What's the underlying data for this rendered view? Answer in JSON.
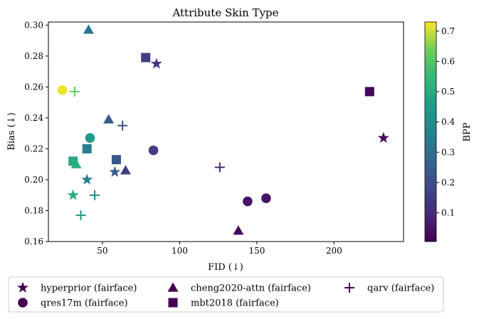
{
  "chart_data": {
    "type": "scatter",
    "title": "Attribute Skin Type",
    "xlabel": "FID (↓)",
    "ylabel": "Bias (↓)",
    "xlim": [
      15,
      245
    ],
    "ylim": [
      0.16,
      0.302
    ],
    "xticks": [
      50,
      100,
      150,
      200
    ],
    "yticks": [
      0.16,
      0.18,
      0.2,
      0.22,
      0.24,
      0.26,
      0.28,
      0.3
    ],
    "xtick_labels": [
      "50",
      "100",
      "150",
      "200"
    ],
    "ytick_labels": [
      "0.16",
      "0.18",
      "0.20",
      "0.22",
      "0.24",
      "0.26",
      "0.28",
      "0.30"
    ],
    "grid": false,
    "colorbar": {
      "label": "BPP",
      "colormap": "viridis",
      "range": [
        0.005,
        0.73
      ],
      "ticks": [
        0.1,
        0.2,
        0.3,
        0.4,
        0.5,
        0.6,
        0.7
      ],
      "tick_labels": [
        "0.1",
        "0.2",
        "0.3",
        "0.4",
        "0.5",
        "0.6",
        "0.7"
      ]
    },
    "legend": {
      "placement": "bottom",
      "columns": 3
    },
    "series": [
      {
        "name": "hyperprior (fairface)",
        "marker": "star",
        "points": [
          {
            "x": 85,
            "y": 0.275,
            "bpp": 0.13
          },
          {
            "x": 232,
            "y": 0.227,
            "bpp": 0.03
          },
          {
            "x": 58,
            "y": 0.205,
            "bpp": 0.24
          },
          {
            "x": 40,
            "y": 0.2,
            "bpp": 0.36
          },
          {
            "x": 31,
            "y": 0.19,
            "bpp": 0.51
          }
        ]
      },
      {
        "name": "qres17m (fairface)",
        "marker": "circle",
        "points": [
          {
            "x": 24,
            "y": 0.258,
            "bpp": 0.72
          },
          {
            "x": 42,
            "y": 0.227,
            "bpp": 0.44
          },
          {
            "x": 83,
            "y": 0.219,
            "bpp": 0.15
          },
          {
            "x": 144,
            "y": 0.186,
            "bpp": 0.05
          },
          {
            "x": 156,
            "y": 0.188,
            "bpp": 0.05
          }
        ]
      },
      {
        "name": "cheng2020-attn (fairface)",
        "marker": "triangle",
        "points": [
          {
            "x": 41,
            "y": 0.297,
            "bpp": 0.34
          },
          {
            "x": 54,
            "y": 0.239,
            "bpp": 0.24
          },
          {
            "x": 33,
            "y": 0.21,
            "bpp": 0.52
          },
          {
            "x": 65,
            "y": 0.206,
            "bpp": 0.15
          },
          {
            "x": 138,
            "y": 0.167,
            "bpp": 0.02
          }
        ]
      },
      {
        "name": "mbt2018 (fairface)",
        "marker": "square",
        "points": [
          {
            "x": 78,
            "y": 0.279,
            "bpp": 0.16
          },
          {
            "x": 223,
            "y": 0.257,
            "bpp": 0.02
          },
          {
            "x": 59,
            "y": 0.213,
            "bpp": 0.23
          },
          {
            "x": 40,
            "y": 0.22,
            "bpp": 0.35
          },
          {
            "x": 31,
            "y": 0.212,
            "bpp": 0.5
          }
        ]
      },
      {
        "name": "qarv (fairface)",
        "marker": "plus",
        "points": [
          {
            "x": 32,
            "y": 0.257,
            "bpp": 0.62
          },
          {
            "x": 63,
            "y": 0.235,
            "bpp": 0.21
          },
          {
            "x": 126,
            "y": 0.208,
            "bpp": 0.09
          },
          {
            "x": 45,
            "y": 0.19,
            "bpp": 0.36
          },
          {
            "x": 36,
            "y": 0.177,
            "bpp": 0.44
          }
        ]
      }
    ]
  }
}
